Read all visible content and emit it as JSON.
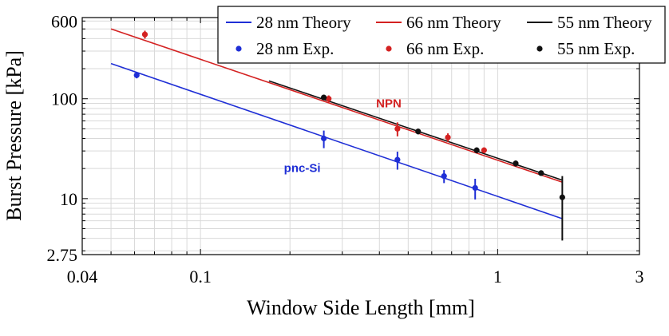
{
  "chart_data": {
    "type": "scatter",
    "xlabel": "Window Side Length [mm]",
    "ylabel": "Burst Pressure [kPa]",
    "xscale": "log",
    "yscale": "log",
    "xlim": [
      0.04,
      3
    ],
    "ylim": [
      2.75,
      650
    ],
    "xticks": [
      {
        "value": 0.04,
        "label": "0.04"
      },
      {
        "value": 0.1,
        "label": "0.1"
      },
      {
        "value": 1,
        "label": "1"
      },
      {
        "value": 3,
        "label": "3"
      }
    ],
    "yticks": [
      {
        "value": 2.75,
        "label": "2.75"
      },
      {
        "value": 10,
        "label": "10"
      },
      {
        "value": 100,
        "label": "100"
      },
      {
        "value": 600,
        "label": "600"
      }
    ],
    "grid": true,
    "legend_position": "top-right",
    "colors": {
      "blue": "#1f2fd6",
      "red": "#d42222",
      "black": "#111111"
    },
    "series": [
      {
        "name": "28 nm Theory",
        "kind": "line",
        "color": "#1f2fd6",
        "x": [
          0.05,
          1.65
        ],
        "y": [
          225,
          6.3
        ]
      },
      {
        "name": "66 nm Theory",
        "kind": "line",
        "color": "#d42222",
        "x": [
          0.05,
          1.65
        ],
        "y": [
          500,
          14.6
        ]
      },
      {
        "name": "55 nm Theory",
        "kind": "line",
        "color": "#111111",
        "x": [
          0.17,
          1.65
        ],
        "y": [
          151,
          15.3
        ]
      },
      {
        "name": "28 nm Exp.",
        "kind": "points",
        "color": "#1f2fd6",
        "x": [
          0.061,
          0.26,
          0.46,
          0.66,
          0.84
        ],
        "y": [
          172,
          40,
          24.5,
          16.8,
          12.8
        ],
        "err": [
          12,
          8,
          5,
          2.5,
          3
        ]
      },
      {
        "name": "66 nm Exp.",
        "kind": "points",
        "color": "#d42222",
        "x": [
          0.065,
          0.27,
          0.46,
          0.68,
          0.9
        ],
        "y": [
          440,
          100,
          50,
          41,
          30.5
        ],
        "err": [
          40,
          8,
          8,
          4,
          2
        ]
      },
      {
        "name": "55 nm Exp.",
        "kind": "points",
        "color": "#111111",
        "x": [
          0.26,
          0.54,
          0.85,
          1.15,
          1.4,
          1.65
        ],
        "y": [
          103,
          47,
          30.5,
          22.5,
          18,
          10.3
        ],
        "err": [
          4,
          3,
          2,
          1.5,
          1,
          6.5
        ]
      }
    ],
    "annotations": [
      {
        "text": "NPN",
        "x": 0.43,
        "y": 82,
        "color": "#d42222"
      },
      {
        "text": "pnc-Si",
        "x": 0.22,
        "y": 18.5,
        "color": "#1f2fd6"
      }
    ]
  }
}
